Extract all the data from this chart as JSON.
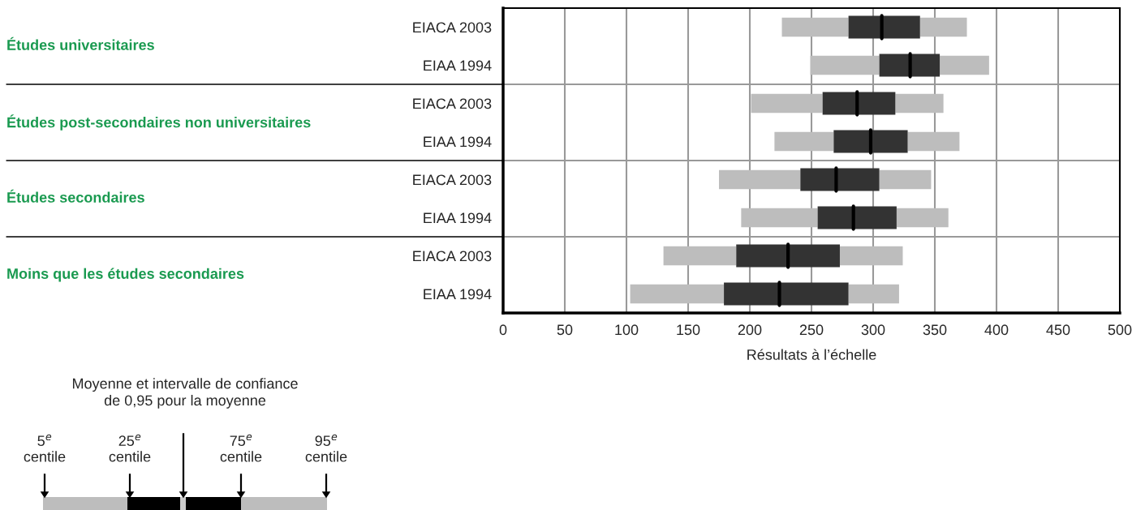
{
  "chart_data": {
    "type": "box",
    "orientation": "horizontal",
    "categories": [
      "EIACA 2003",
      "EIAA 1994",
      "EIACA 2003",
      "EIAA 1994",
      "EIACA 2003",
      "EIAA 1994",
      "EIACA 2003",
      "EIAA 1994"
    ],
    "boxes": [
      {
        "low": 226,
        "q1": 280,
        "median": 307,
        "q3": 338,
        "high": 376
      },
      {
        "low": 249,
        "q1": 305,
        "median": 330,
        "q3": 354,
        "high": 394
      },
      {
        "low": 201,
        "q1": 259,
        "median": 287,
        "q3": 318,
        "high": 357
      },
      {
        "low": 220,
        "q1": 268,
        "median": 298,
        "q3": 328,
        "high": 370
      },
      {
        "low": 175,
        "q1": 241,
        "median": 270,
        "q3": 305,
        "high": 347
      },
      {
        "low": 193,
        "q1": 255,
        "median": 284,
        "q3": 319,
        "high": 361
      },
      {
        "low": 130,
        "q1": 189,
        "median": 231,
        "q3": 273,
        "high": 324
      },
      {
        "low": 103,
        "q1": 179,
        "median": 224,
        "q3": 280,
        "high": 321
      }
    ],
    "color": "#333333",
    "xlabel": "Résultats à l’échelle",
    "xlim": [
      0,
      500
    ],
    "xticks": [
      0,
      50,
      100,
      150,
      200,
      250,
      300,
      350,
      400,
      450,
      500
    ],
    "grid": "x",
    "annotations": [
      "Études universitaires",
      "Études post-secondaires non universitaires",
      "Études secondaires",
      "Moins que les études secondaires",
      "Moyenne et intervalle de confiance\nde 0,95 pour la moyenne",
      "5$^{e}$\ncentile",
      "25$^{e}$\ncentile",
      "75$^{e}$\ncentile",
      "95$^{e}$\ncentile"
    ]
  }
}
